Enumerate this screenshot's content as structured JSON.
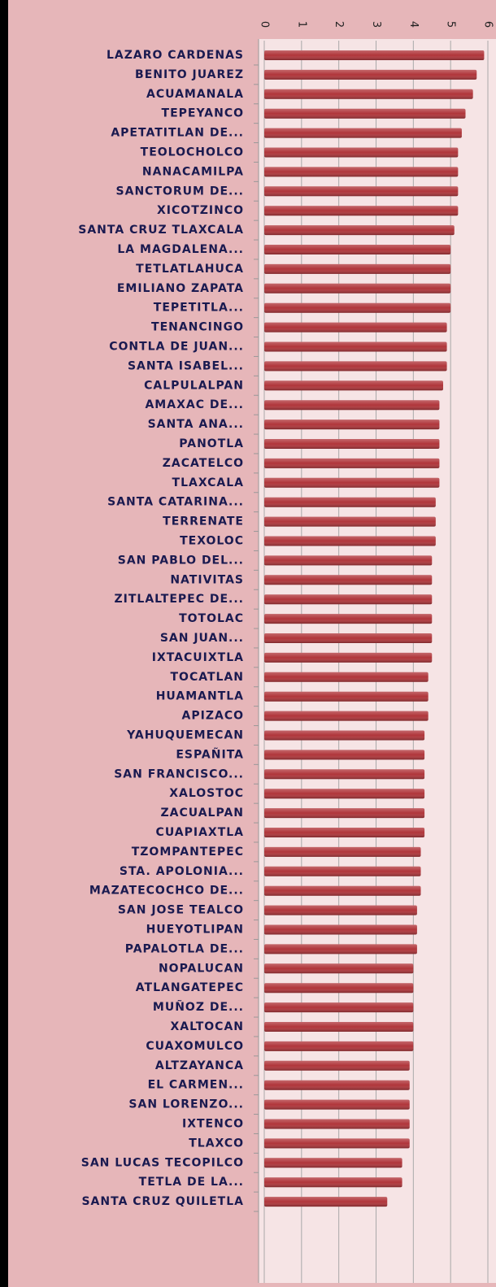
{
  "chart_data": {
    "type": "bar",
    "orientation": "horizontal",
    "categories": [
      "LAZARO CARDENAS",
      "BENITO JUAREZ",
      "ACUAMANALA",
      "TEPEYANCO",
      "APETATITLAN DE...",
      "TEOLOCHOLCO",
      "NANACAMILPA",
      "SANCTORUM DE...",
      "XICOTZINCO",
      "SANTA CRUZ TLAXCALA",
      "LA MAGDALENA...",
      "TETLATLAHUCA",
      "EMILIANO ZAPATA",
      "TEPETITLA...",
      "TENANCINGO",
      "CONTLA DE JUAN...",
      "SANTA ISABEL...",
      "CALPULALPAN",
      "AMAXAC DE...",
      "SANTA ANA...",
      "PANOTLA",
      "ZACATELCO",
      "TLAXCALA",
      "SANTA CATARINA...",
      "TERRENATE",
      "TEXOLOC",
      "SAN PABLO DEL...",
      "NATIVITAS",
      "ZITLALTEPEC DE...",
      "TOTOLAC",
      "SAN JUAN...",
      "IXTACUIXTLA",
      "TOCATLAN",
      "HUAMANTLA",
      "APIZACO",
      "YAHUQUEMECAN",
      "ESPAÑITA",
      "SAN FRANCISCO...",
      "XALOSTOC",
      "ZACUALPAN",
      "CUAPIAXTLA",
      "TZOMPANTEPEC",
      "STA. APOLONIA...",
      "MAZATECOCHCO DE...",
      "SAN JOSE TEALCO",
      "HUEYOTLIPAN",
      "PAPALOTLA DE...",
      "NOPALUCAN",
      "ATLANGATEPEC",
      "MUÑOZ DE...",
      "XALTOCAN",
      "CUAXOMULCO",
      "ALTZAYANCA",
      "EL CARMEN...",
      "SAN LORENZO...",
      "IXTENCO",
      "TLAXCO",
      "SAN LUCAS TECOPILCO",
      "TETLA DE LA...",
      "SANTA CRUZ QUILETLA"
    ],
    "values": [
      5.9,
      5.7,
      5.6,
      5.4,
      5.3,
      5.2,
      5.2,
      5.2,
      5.2,
      5.1,
      5.0,
      5.0,
      5.0,
      5.0,
      4.9,
      4.9,
      4.9,
      4.8,
      4.7,
      4.7,
      4.7,
      4.7,
      4.7,
      4.6,
      4.6,
      4.6,
      4.5,
      4.5,
      4.5,
      4.5,
      4.5,
      4.5,
      4.4,
      4.4,
      4.4,
      4.3,
      4.3,
      4.3,
      4.3,
      4.3,
      4.3,
      4.2,
      4.2,
      4.2,
      4.1,
      4.1,
      4.1,
      4.0,
      4.0,
      4.0,
      4.0,
      4.0,
      3.9,
      3.9,
      3.9,
      3.9,
      3.9,
      3.7,
      3.7,
      3.3
    ],
    "color": "#b0353a",
    "xlim": [
      0,
      6
    ],
    "xticks": [
      0,
      1,
      2,
      3,
      4,
      5,
      6
    ],
    "grid": true
  }
}
